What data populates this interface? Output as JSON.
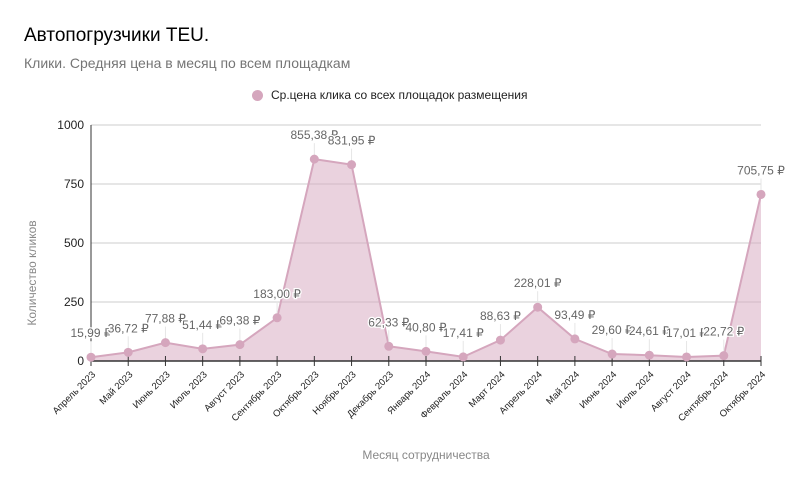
{
  "chart_data": {
    "type": "area",
    "title": "Автопогрузчики TEU.",
    "subtitle": "Клики. Средняя цена в месяц по всем площадкам",
    "xlabel": "Месяц сотрудничества",
    "ylabel": "Количество кликов",
    "ylim": [
      0,
      1000
    ],
    "yticks": [
      "0",
      "250",
      "500",
      "750",
      "1000"
    ],
    "ytick_values": [
      0,
      250,
      500,
      750,
      1000
    ],
    "grid": true,
    "legend_position": "top",
    "categories": [
      "Апрель 2023",
      "Май 2023",
      "Июнь 2023",
      "Июль 2023",
      "Август 2023",
      "Сентябрь 2023",
      "Октябрь 2023",
      "Ноябрь 2023",
      "Декабрь 2023",
      "Январь 2024",
      "Февраль 2024",
      "Март 2024",
      "Апрель 2024",
      "Май 2024",
      "Июнь 2024",
      "Июль 2024",
      "Август 2024",
      "Сентябрь 2024",
      "Октябрь 2024"
    ],
    "series": [
      {
        "name": "Ср.цена клика со всех площадок размещения",
        "color": "#d5a6bd",
        "values": [
          15.99,
          36.72,
          77.88,
          51.44,
          69.38,
          183.0,
          855.38,
          831.95,
          62.33,
          40.8,
          17.41,
          88.63,
          228.01,
          93.49,
          29.6,
          24.61,
          17.01,
          22.72,
          705.75
        ],
        "labels": [
          "15,99 ₽",
          "36,72 ₽",
          "77,88 ₽",
          "51,44 ₽",
          "69,38 ₽",
          "183,00 ₽",
          "855,38 ₽",
          "831,95 ₽",
          "62,33 ₽",
          "40,80 ₽",
          "17,41 ₽",
          "88,63 ₽",
          "228,01 ₽",
          "93,49 ₽",
          "29,60 ₽",
          "24,61 ₽",
          "17,01 ₽",
          "22,72 ₽",
          "705,75 ₽"
        ]
      }
    ]
  }
}
